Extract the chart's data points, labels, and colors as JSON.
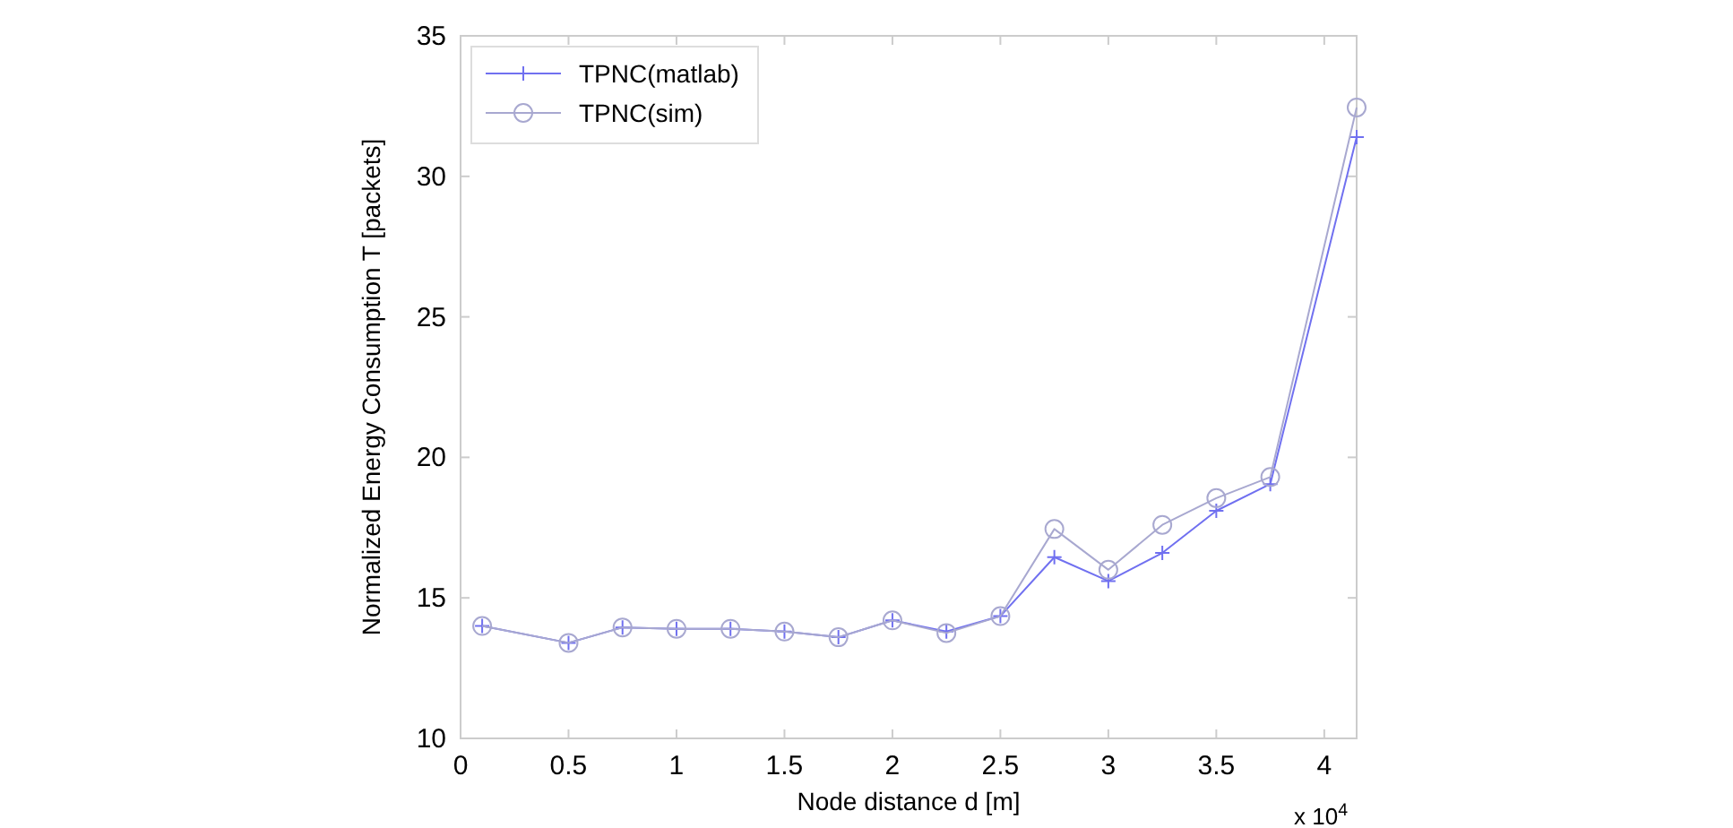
{
  "chart_data": {
    "type": "line",
    "xlabel": "Node distance d [m]",
    "ylabel": "Normalized Energy Consumption T [packets]",
    "x": [
      0.1,
      0.5,
      0.75,
      1,
      1.25,
      1.5,
      1.75,
      2,
      2.25,
      2.5,
      2.75,
      3,
      3.25,
      3.5,
      3.75,
      4.15
    ],
    "series": [
      {
        "name": "TPNC(matlab)",
        "color": "#7070f0",
        "marker": "cross",
        "values": [
          14.0,
          13.4,
          13.95,
          13.9,
          13.9,
          13.8,
          13.6,
          14.2,
          13.8,
          14.35,
          16.45,
          15.6,
          16.6,
          18.1,
          19.05,
          31.4
        ]
      },
      {
        "name": "TPNC(sim)",
        "color": "#a8a8d0",
        "marker": "circle",
        "values": [
          14.0,
          13.4,
          13.95,
          13.9,
          13.9,
          13.8,
          13.6,
          14.2,
          13.75,
          14.35,
          17.45,
          16.0,
          17.6,
          18.55,
          19.3,
          32.45
        ]
      }
    ],
    "xlim": [
      0,
      4.15
    ],
    "xticks": [
      0,
      0.5,
      1,
      1.5,
      2,
      2.5,
      3,
      3.5,
      4
    ],
    "ylim": [
      10,
      35
    ],
    "yticks": [
      10,
      15,
      20,
      25,
      30,
      35
    ],
    "annotations": [
      "x 10$^{4}$"
    ],
    "legend": "top left",
    "grid": false
  }
}
